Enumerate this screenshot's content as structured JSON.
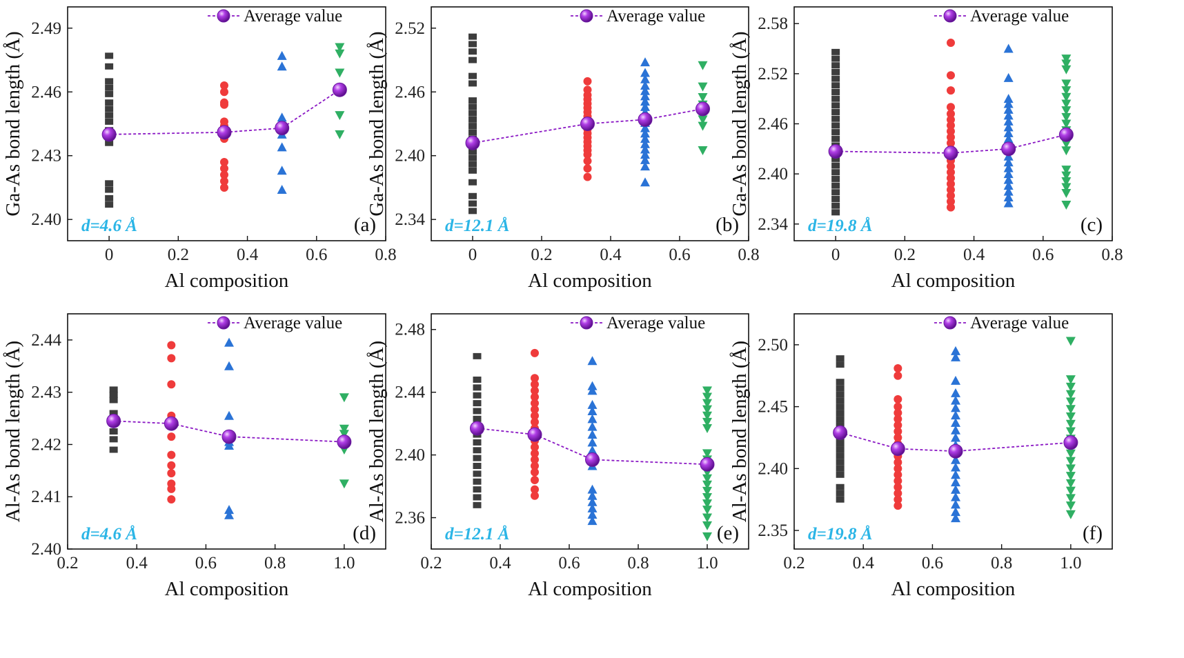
{
  "chart_data": [
    {
      "id": "a",
      "type": "scatter",
      "panel_label": "(a)",
      "annotation": "d=4.6 Å",
      "xlabel": "Al composition",
      "ylabel": "Ga-As bond length (Å)",
      "xlim": [
        -0.12,
        0.8
      ],
      "ylim": [
        2.39,
        2.5
      ],
      "xticks": [
        0,
        0.2,
        0.4,
        0.6,
        0.8
      ],
      "xtick_labels": [
        "0",
        "0.2",
        "0.4",
        "0.6",
        "0.8"
      ],
      "yticks": [
        2.4,
        2.43,
        2.46,
        2.49
      ],
      "ytick_labels": [
        "2.40",
        "2.43",
        "2.46",
        "2.49"
      ],
      "legend": {
        "label": "Average value",
        "position": "top-right"
      },
      "series": [
        {
          "x": 0,
          "marker": "square",
          "color": "#3d3d3d",
          "values": [
            2.477,
            2.472,
            2.465,
            2.462,
            2.459,
            2.455,
            2.452,
            2.449,
            2.446,
            2.442,
            2.439,
            2.436,
            2.417,
            2.414,
            2.41,
            2.407
          ]
        },
        {
          "x": 0.333,
          "marker": "circle",
          "color": "#ef3b3b",
          "values": [
            2.463,
            2.46,
            2.455,
            2.454,
            2.446,
            2.444,
            2.441,
            2.438,
            2.427,
            2.424,
            2.421,
            2.418,
            2.415
          ]
        },
        {
          "x": 0.5,
          "marker": "triangle-up",
          "color": "#2a73d6",
          "values": [
            2.477,
            2.472,
            2.448,
            2.446,
            2.44,
            2.434,
            2.423,
            2.414
          ]
        },
        {
          "x": 0.667,
          "marker": "triangle-down",
          "color": "#2faf63",
          "values": [
            2.481,
            2.478,
            2.469,
            2.46,
            2.449,
            2.44
          ]
        }
      ],
      "average": {
        "color": "#8a17c4",
        "x": [
          0,
          0.333,
          0.5,
          0.667
        ],
        "y": [
          2.44,
          2.441,
          2.443,
          2.461
        ]
      }
    },
    {
      "id": "b",
      "type": "scatter",
      "panel_label": "(b)",
      "annotation": "d=12.1 Å",
      "xlabel": "Al composition",
      "ylabel": "Ga-As bond length (Å)",
      "xlim": [
        -0.12,
        0.8
      ],
      "ylim": [
        2.32,
        2.54
      ],
      "xticks": [
        0,
        0.2,
        0.4,
        0.6,
        0.8
      ],
      "xtick_labels": [
        "0",
        "0.2",
        "0.4",
        "0.6",
        "0.8"
      ],
      "yticks": [
        2.34,
        2.4,
        2.46,
        2.52
      ],
      "ytick_labels": [
        "2.34",
        "2.40",
        "2.46",
        "2.52"
      ],
      "legend": {
        "label": "Average value",
        "position": "top-right"
      },
      "series": [
        {
          "x": 0,
          "marker": "square",
          "color": "#3d3d3d",
          "values": [
            2.512,
            2.505,
            2.498,
            2.49,
            2.475,
            2.468,
            2.452,
            2.446,
            2.44,
            2.434,
            2.428,
            2.422,
            2.416,
            2.41,
            2.404,
            2.398,
            2.392,
            2.386,
            2.375,
            2.362,
            2.355,
            2.348
          ]
        },
        {
          "x": 0.333,
          "marker": "circle",
          "color": "#ef3b3b",
          "values": [
            2.47,
            2.462,
            2.457,
            2.453,
            2.449,
            2.445,
            2.441,
            2.437,
            2.433,
            2.429,
            2.425,
            2.421,
            2.417,
            2.413,
            2.409,
            2.405,
            2.401,
            2.395,
            2.388,
            2.38
          ]
        },
        {
          "x": 0.5,
          "marker": "triangle-up",
          "color": "#2a73d6",
          "values": [
            2.488,
            2.478,
            2.472,
            2.466,
            2.461,
            2.456,
            2.451,
            2.446,
            2.441,
            2.436,
            2.431,
            2.426,
            2.421,
            2.416,
            2.411,
            2.406,
            2.401,
            2.396,
            2.39,
            2.375
          ]
        },
        {
          "x": 0.667,
          "marker": "triangle-down",
          "color": "#2faf63",
          "values": [
            2.485,
            2.465,
            2.455,
            2.448,
            2.441,
            2.434,
            2.428,
            2.405
          ]
        }
      ],
      "average": {
        "color": "#8a17c4",
        "x": [
          0,
          0.333,
          0.5,
          0.667
        ],
        "y": [
          2.412,
          2.43,
          2.434,
          2.444
        ]
      }
    },
    {
      "id": "c",
      "type": "scatter",
      "panel_label": "(c)",
      "annotation": "d=19.8 Å",
      "xlabel": "Al composition",
      "ylabel": "Ga-As bond length (Å)",
      "xlim": [
        -0.12,
        0.8
      ],
      "ylim": [
        2.32,
        2.6
      ],
      "xticks": [
        0,
        0.2,
        0.4,
        0.6,
        0.8
      ],
      "xtick_labels": [
        "0",
        "0.2",
        "0.4",
        "0.6",
        "0.8"
      ],
      "yticks": [
        2.34,
        2.4,
        2.46,
        2.52,
        2.58
      ],
      "ytick_labels": [
        "2.34",
        "2.40",
        "2.46",
        "2.52",
        "2.58"
      ],
      "legend": {
        "label": "Average value",
        "position": "top-right"
      },
      "series": [
        {
          "x": 0,
          "marker": "square",
          "color": "#3d3d3d",
          "values": [
            2.546,
            2.538,
            2.53,
            2.522,
            2.514,
            2.506,
            2.498,
            2.49,
            2.482,
            2.474,
            2.466,
            2.458,
            2.45,
            2.442,
            2.434,
            2.426,
            2.418,
            2.41,
            2.402,
            2.394,
            2.386,
            2.378,
            2.37,
            2.362,
            2.354
          ]
        },
        {
          "x": 0.333,
          "marker": "circle",
          "color": "#ef3b3b",
          "values": [
            2.557,
            2.518,
            2.5,
            2.48,
            2.472,
            2.465,
            2.458,
            2.451,
            2.444,
            2.437,
            2.43,
            2.423,
            2.416,
            2.409,
            2.402,
            2.395,
            2.388,
            2.381,
            2.374,
            2.367,
            2.36
          ]
        },
        {
          "x": 0.5,
          "marker": "triangle-up",
          "color": "#2a73d6",
          "values": [
            2.55,
            2.515,
            2.49,
            2.484,
            2.477,
            2.47,
            2.463,
            2.456,
            2.449,
            2.442,
            2.435,
            2.428,
            2.421,
            2.414,
            2.407,
            2.4,
            2.393,
            2.386,
            2.379,
            2.372,
            2.365
          ]
        },
        {
          "x": 0.667,
          "marker": "triangle-down",
          "color": "#2faf63",
          "values": [
            2.538,
            2.532,
            2.525,
            2.508,
            2.5,
            2.492,
            2.484,
            2.476,
            2.468,
            2.46,
            2.452,
            2.444,
            2.436,
            2.428,
            2.405,
            2.398,
            2.391,
            2.384,
            2.377,
            2.363
          ]
        }
      ],
      "average": {
        "color": "#8a17c4",
        "x": [
          0,
          0.333,
          0.5,
          0.667
        ],
        "y": [
          2.427,
          2.425,
          2.43,
          2.447
        ]
      }
    },
    {
      "id": "d",
      "type": "scatter",
      "panel_label": "(d)",
      "annotation": "d=4.6 Å",
      "xlabel": "Al composition",
      "ylabel": "Al-As bond length (Å)",
      "xlim": [
        0.2,
        1.12
      ],
      "ylim": [
        2.4,
        2.445
      ],
      "xticks": [
        0.2,
        0.4,
        0.6,
        0.8,
        1.0
      ],
      "xtick_labels": [
        "0.2",
        "0.4",
        "0.6",
        "0.8",
        "1.0"
      ],
      "yticks": [
        2.4,
        2.41,
        2.42,
        2.43,
        2.44
      ],
      "ytick_labels": [
        "2.40",
        "2.41",
        "2.42",
        "2.43",
        "2.44"
      ],
      "legend": {
        "label": "Average value",
        "position": "top-right"
      },
      "series": [
        {
          "x": 0.333,
          "marker": "square",
          "color": "#3d3d3d",
          "values": [
            2.4305,
            2.4295,
            2.4285,
            2.426,
            2.424,
            2.4225,
            2.421,
            2.419
          ]
        },
        {
          "x": 0.5,
          "marker": "circle",
          "color": "#ef3b3b",
          "values": [
            2.439,
            2.4365,
            2.4315,
            2.4255,
            2.4215,
            2.418,
            2.416,
            2.4145,
            2.4125,
            2.4115,
            2.4095
          ]
        },
        {
          "x": 0.667,
          "marker": "triangle-up",
          "color": "#2a73d6",
          "values": [
            2.4395,
            2.435,
            2.4255,
            2.4205,
            2.4198,
            2.4075,
            2.4065
          ]
        },
        {
          "x": 1.0,
          "marker": "triangle-down",
          "color": "#2faf63",
          "values": [
            2.429,
            2.423,
            2.422,
            2.419,
            2.4125
          ]
        }
      ],
      "average": {
        "color": "#8a17c4",
        "x": [
          0.333,
          0.5,
          0.667,
          1.0
        ],
        "y": [
          2.4245,
          2.424,
          2.4215,
          2.4205
        ]
      }
    },
    {
      "id": "e",
      "type": "scatter",
      "panel_label": "(e)",
      "annotation": "d=12.1 Å",
      "xlabel": "Al composition",
      "ylabel": "Al-As bond length (Å)",
      "xlim": [
        0.2,
        1.12
      ],
      "ylim": [
        2.34,
        2.49
      ],
      "xticks": [
        0.2,
        0.4,
        0.6,
        0.8,
        1.0
      ],
      "xtick_labels": [
        "0.2",
        "0.4",
        "0.6",
        "0.8",
        "1.0"
      ],
      "yticks": [
        2.36,
        2.4,
        2.44,
        2.48
      ],
      "ytick_labels": [
        "2.36",
        "2.40",
        "2.44",
        "2.48"
      ],
      "legend": {
        "label": "Average value",
        "position": "top-right"
      },
      "series": [
        {
          "x": 0.333,
          "marker": "square",
          "color": "#3d3d3d",
          "values": [
            2.463,
            2.448,
            2.443,
            2.438,
            2.433,
            2.428,
            2.423,
            2.418,
            2.413,
            2.408,
            2.403,
            2.398,
            2.393,
            2.388,
            2.383,
            2.378,
            2.373,
            2.368
          ]
        },
        {
          "x": 0.5,
          "marker": "circle",
          "color": "#ef3b3b",
          "values": [
            2.465,
            2.449,
            2.445,
            2.441,
            2.437,
            2.433,
            2.429,
            2.425,
            2.421,
            2.417,
            2.413,
            2.409,
            2.405,
            2.401,
            2.397,
            2.393,
            2.389,
            2.384,
            2.378,
            2.374
          ]
        },
        {
          "x": 0.667,
          "marker": "triangle-up",
          "color": "#2a73d6",
          "values": [
            2.46,
            2.444,
            2.441,
            2.432,
            2.428,
            2.423,
            2.418,
            2.413,
            2.408,
            2.403,
            2.398,
            2.393,
            2.378,
            2.374,
            2.37,
            2.366,
            2.362,
            2.358
          ]
        },
        {
          "x": 1.0,
          "marker": "triangle-down",
          "color": "#2faf63",
          "values": [
            2.441,
            2.437,
            2.433,
            2.429,
            2.425,
            2.421,
            2.417,
            2.401,
            2.397,
            2.393,
            2.389,
            2.385,
            2.381,
            2.377,
            2.373,
            2.369,
            2.365,
            2.36,
            2.355,
            2.348
          ]
        }
      ],
      "average": {
        "color": "#8a17c4",
        "x": [
          0.333,
          0.5,
          0.667,
          1.0
        ],
        "y": [
          2.417,
          2.413,
          2.397,
          2.394
        ]
      }
    },
    {
      "id": "f",
      "type": "scatter",
      "panel_label": "(f)",
      "annotation": "d=19.8 Å",
      "xlabel": "Al composition",
      "ylabel": "Al-As bond length (Å)",
      "xlim": [
        0.2,
        1.12
      ],
      "ylim": [
        2.335,
        2.525
      ],
      "xticks": [
        0.2,
        0.4,
        0.6,
        0.8,
        1.0
      ],
      "xtick_labels": [
        "0.2",
        "0.4",
        "0.6",
        "0.8",
        "1.0"
      ],
      "yticks": [
        2.35,
        2.4,
        2.45,
        2.5
      ],
      "ytick_labels": [
        "2.35",
        "2.40",
        "2.45",
        "2.50"
      ],
      "legend": {
        "label": "Average value",
        "position": "top-right"
      },
      "series": [
        {
          "x": 0.333,
          "marker": "square",
          "color": "#3d3d3d",
          "values": [
            2.489,
            2.484,
            2.47,
            2.465,
            2.46,
            2.455,
            2.45,
            2.445,
            2.44,
            2.435,
            2.43,
            2.425,
            2.42,
            2.415,
            2.41,
            2.405,
            2.4,
            2.395,
            2.385,
            2.38,
            2.375
          ]
        },
        {
          "x": 0.5,
          "marker": "circle",
          "color": "#ef3b3b",
          "values": [
            2.481,
            2.475,
            2.456,
            2.45,
            2.445,
            2.44,
            2.435,
            2.43,
            2.425,
            2.42,
            2.415,
            2.41,
            2.405,
            2.4,
            2.395,
            2.39,
            2.385,
            2.38,
            2.375,
            2.37
          ]
        },
        {
          "x": 0.667,
          "marker": "triangle-up",
          "color": "#2a73d6",
          "values": [
            2.495,
            2.49,
            2.471,
            2.461,
            2.455,
            2.449,
            2.443,
            2.437,
            2.431,
            2.425,
            2.419,
            2.413,
            2.407,
            2.401,
            2.395,
            2.389,
            2.383,
            2.377,
            2.371,
            2.365,
            2.36
          ]
        },
        {
          "x": 1.0,
          "marker": "triangle-down",
          "color": "#2faf63",
          "values": [
            2.503,
            2.472,
            2.466,
            2.46,
            2.454,
            2.448,
            2.442,
            2.436,
            2.43,
            2.424,
            2.418,
            2.412,
            2.406,
            2.4,
            2.394,
            2.388,
            2.382,
            2.376,
            2.37,
            2.363
          ]
        }
      ],
      "average": {
        "color": "#8a17c4",
        "x": [
          0.333,
          0.5,
          0.667,
          1.0
        ],
        "y": [
          2.429,
          2.416,
          2.414,
          2.421
        ]
      }
    }
  ]
}
